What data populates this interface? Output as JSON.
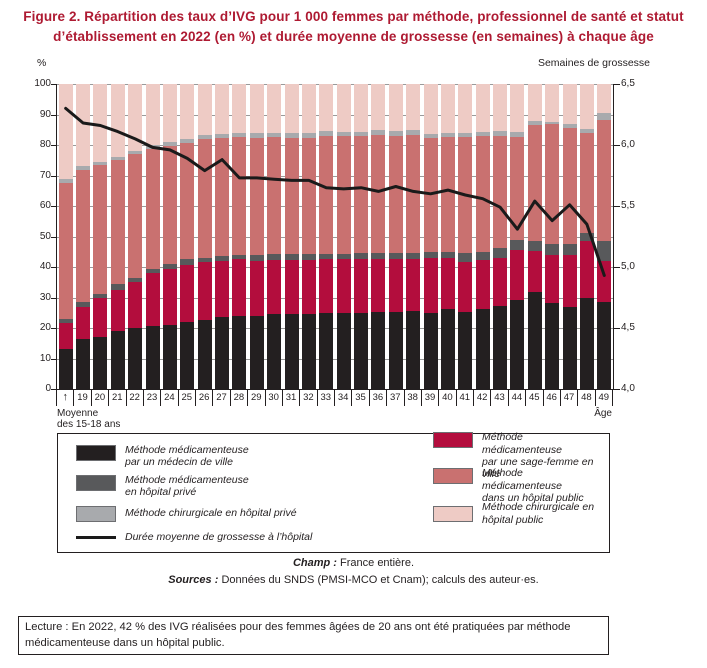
{
  "title": {
    "line1": "Figure 2. Répartition des taux d’IVG pour 1 000 femmes par méthode, professionnel de santé et statut",
    "line2": "d’établissement en 2022 (en %) et durée moyenne de grossesse (en semaines) à chaque âge"
  },
  "axes": {
    "left_label": "%",
    "right_label": "Semaines de grossesse",
    "left_ticks": [
      0,
      10,
      20,
      30,
      40,
      50,
      60,
      70,
      80,
      90,
      100
    ],
    "right_ticks": [
      {
        "label": "4,0",
        "value": 4.0
      },
      {
        "label": "4,5",
        "value": 4.5
      },
      {
        "label": "5,0",
        "value": 5.0
      },
      {
        "label": "5,5",
        "value": 5.5
      },
      {
        "label": "6,0",
        "value": 6.0
      },
      {
        "label": "6,5",
        "value": 6.5
      }
    ],
    "x_axis_label": "Âge",
    "x_first_note": "Moyenne\ndes 15-18 ans",
    "x_arrow": "↑"
  },
  "chart_data": {
    "type": "stacked-bar+line",
    "categories": [
      "Moyenne des 15-18 ans",
      "19",
      "20",
      "21",
      "22",
      "23",
      "24",
      "25",
      "26",
      "27",
      "28",
      "29",
      "30",
      "31",
      "32",
      "33",
      "34",
      "35",
      "36",
      "37",
      "38",
      "39",
      "40",
      "41",
      "42",
      "43",
      "44",
      "45",
      "46",
      "47",
      "48",
      "49"
    ],
    "ylim_left": [
      0,
      100
    ],
    "ylim_right": [
      4.0,
      6.5
    ],
    "grid": true,
    "series": [
      {
        "name": "Méthode médicamenteuse par un médecin de ville",
        "color": "#231f20",
        "values": [
          13,
          16.5,
          17,
          19,
          20,
          20.5,
          21,
          22,
          22.5,
          23.5,
          24,
          24,
          24.5,
          24.5,
          24.5,
          25,
          25,
          25,
          25.3,
          25.3,
          25.5,
          24.8,
          26.2,
          25.3,
          26.2,
          27.3,
          29.2,
          31.8,
          28.2,
          27,
          29.8,
          28.5
        ]
      },
      {
        "name": "Méthode médicamenteuse par une sage-femme en ville",
        "color": "#b30d3d",
        "values": [
          8.5,
          10.5,
          12.8,
          13.5,
          15,
          17.5,
          18.5,
          18.7,
          19,
          18.5,
          18.5,
          18,
          17.8,
          17.8,
          17.8,
          17.5,
          17.5,
          17.5,
          17.2,
          17.2,
          17.1,
          18,
          16.6,
          16.4,
          16.1,
          15.7,
          16.4,
          13.6,
          15.7,
          16.9,
          18.7,
          13.5
        ]
      },
      {
        "name": "Méthode médicamenteuse en hôpital privé",
        "color": "#58595b",
        "values": [
          1.5,
          1.5,
          1.2,
          2,
          1.5,
          1.5,
          1.5,
          1.8,
          1.5,
          1.5,
          1.5,
          2,
          1.9,
          1.9,
          1.9,
          1.9,
          1.9,
          2,
          2,
          2,
          2,
          2,
          2,
          2.8,
          2.7,
          3.1,
          3.4,
          3.2,
          3.6,
          3.5,
          2.5,
          6.4
        ]
      },
      {
        "name": "Méthode médicamenteuse dans un hôpital public",
        "color": "#c97170",
        "values": [
          44.5,
          43.3,
          42.3,
          40.6,
          40.5,
          39.2,
          38.7,
          38.1,
          39,
          38.7,
          38.5,
          38.4,
          38.3,
          38.2,
          38.2,
          38.7,
          38.6,
          38.5,
          38.8,
          38.6,
          38.8,
          37.4,
          37.9,
          38,
          37.9,
          37,
          33.8,
          38,
          39.4,
          38.1,
          32.8,
          39.8
        ]
      },
      {
        "name": "Méthode chirurgicale en hôpital privé",
        "color": "#a8aaad",
        "values": [
          1.5,
          1.2,
          1.2,
          1.1,
          1.2,
          1.3,
          1.4,
          1.3,
          1.3,
          1.3,
          1.3,
          1.4,
          1.5,
          1.4,
          1.4,
          1.5,
          1.4,
          1.4,
          1.6,
          1.5,
          1.4,
          1.3,
          1.4,
          1.5,
          1.4,
          1.4,
          1.4,
          1.4,
          0.7,
          1.5,
          1.4,
          2.3
        ]
      },
      {
        "name": "Méthode chirurgicale en hôpital public",
        "color": "#eecbc5",
        "values": [
          31,
          27,
          25.5,
          23.8,
          21.8,
          20,
          18.9,
          18.1,
          16.7,
          16.5,
          16.2,
          16.2,
          16,
          16.2,
          16.2,
          15.4,
          15.6,
          15.6,
          15.1,
          15.4,
          15.2,
          16.5,
          15.9,
          16,
          15.7,
          15.5,
          15.8,
          12,
          12.4,
          13,
          14.8,
          9.5
        ]
      }
    ],
    "line_series": {
      "name": "Durée moyenne de grossesse à l’hôpital",
      "color": "#1a1a1a",
      "axis": "right",
      "values": [
        6.3,
        6.18,
        6.16,
        6.11,
        6.05,
        5.98,
        5.96,
        5.89,
        5.79,
        5.88,
        5.73,
        5.73,
        5.72,
        5.71,
        5.71,
        5.65,
        5.64,
        5.65,
        5.62,
        5.66,
        5.62,
        5.6,
        5.63,
        5.59,
        5.56,
        5.49,
        5.31,
        5.54,
        5.38,
        5.51,
        5.35,
        4.93
      ]
    }
  },
  "legend": {
    "items": [
      {
        "label": "Méthode médicamenteuse\npar un médecin de ville",
        "color": "#231f20"
      },
      {
        "label": "Méthode médicamenteuse\npar une sage-femme en ville",
        "color": "#b30d3d"
      },
      {
        "label": "Méthode médicamenteuse\nen hôpital privé",
        "color": "#58595b"
      },
      {
        "label": "Méthode médicamenteuse\ndans un hôpital public",
        "color": "#c97170"
      },
      {
        "label": "Méthode chirurgicale en hôpital privé",
        "color": "#a8aaad"
      },
      {
        "label": "Méthode chirurgicale en hôpital public",
        "color": "#eecbc5"
      },
      {
        "label": "Durée moyenne de grossesse à l’hôpital",
        "color": "#1a1a1a"
      }
    ]
  },
  "notes": {
    "champ_label": "Champ :",
    "champ_text": " France entière.",
    "sources_label": "Sources :",
    "sources_text": " Données du SNDS (PMSI-MCO et Cnam); calculs des auteur·es.",
    "lecture": "Lecture : En 2022, 42 % des IVG réalisées pour des femmes âgées de 20 ans ont été pratiquées par méthode médicamenteuse dans un hôpital public."
  }
}
